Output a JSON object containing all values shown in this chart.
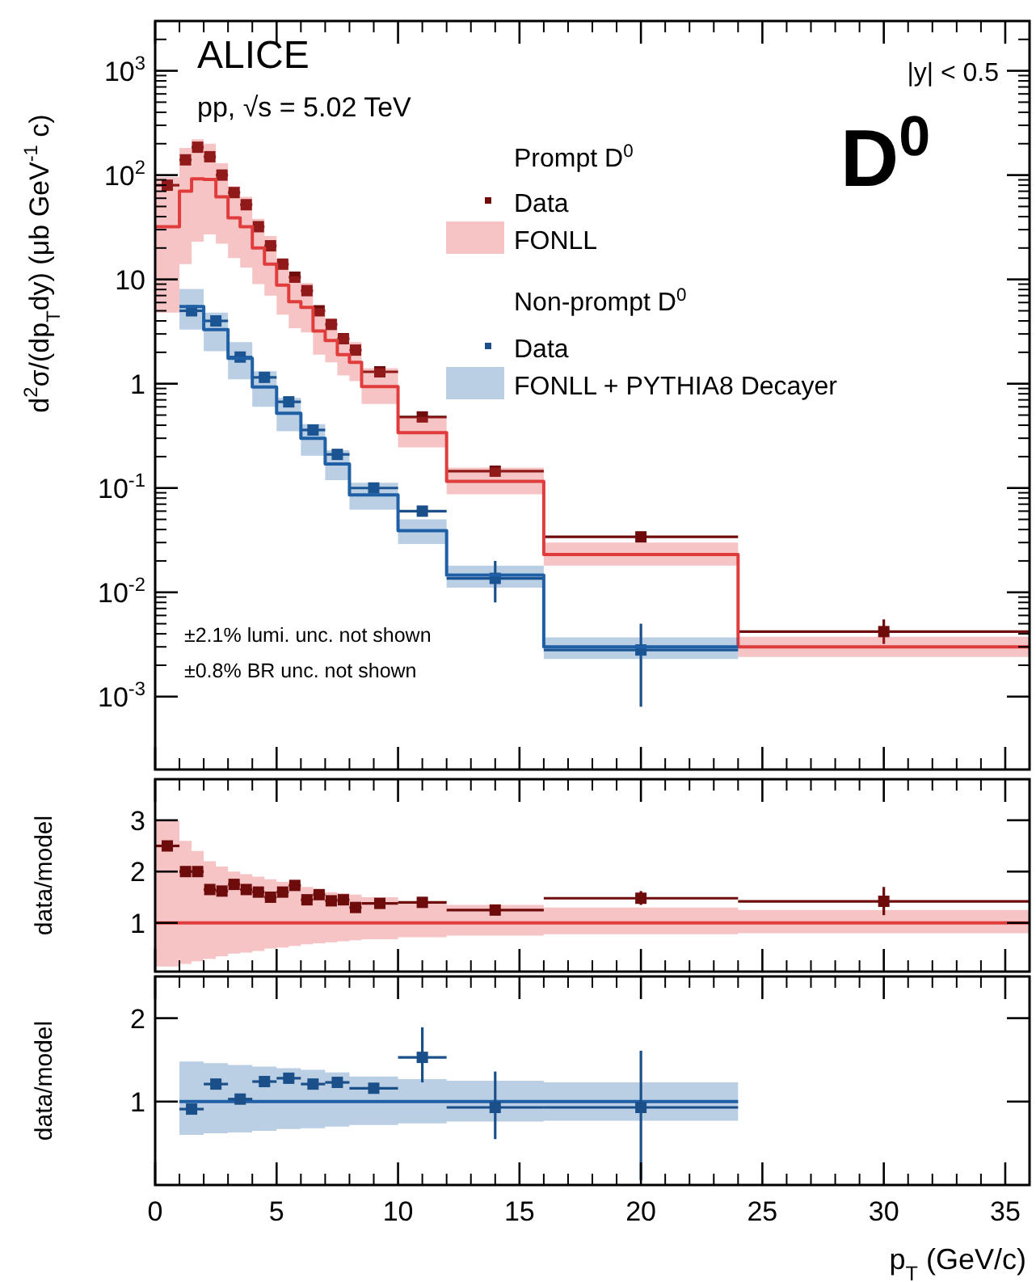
{
  "chart_data": [
    {
      "type": "scatter",
      "log": true,
      "ylabel": "d$^{2}$σ/(dp$_{T}$dy) (μb GeV$^{-1}$ c)",
      "xlim": [
        0,
        36
      ],
      "ylim": [
        0.0002,
        3000
      ],
      "xticks": [
        0,
        5,
        10,
        15,
        20,
        25,
        30,
        35
      ],
      "yticks": [
        {
          "value": 0.001,
          "label": "10$^{-3}$"
        },
        {
          "value": 0.01,
          "label": "10$^{-2}$"
        },
        {
          "value": 0.1,
          "label": "10$^{-1}$"
        },
        1,
        10,
        {
          "value": 100,
          "label": "10$^{2}$"
        },
        {
          "value": 1000,
          "label": "10$^{3}$"
        }
      ],
      "tick_labels": "y",
      "legend": "top right",
      "annotations": [
        "ALICE",
        "pp, √s = 5.02 TeV",
        "|y| < 0.5",
        "D$^{0}$",
        "Prompt D$^{0}$",
        "Non-prompt D$^{0}$",
        "±2.1% lumi. unc. not shown",
        "±0.8% BR unc. not shown"
      ],
      "series": [
        {
          "name": "Data",
          "marker": "square",
          "color": "#6e0c0c",
          "x": [
            0.5,
            1.25,
            1.75,
            2.25,
            2.75,
            3.25,
            3.75,
            4.25,
            4.75,
            5.25,
            5.75,
            6.25,
            6.75,
            7.25,
            7.75,
            8.25,
            9.25,
            11,
            14,
            20,
            30
          ],
          "xerrors": [
            0.5,
            0.25,
            0.25,
            0.25,
            0.25,
            0.25,
            0.25,
            0.25,
            0.25,
            0.25,
            0.25,
            0.25,
            0.25,
            0.25,
            0.25,
            0.25,
            0.75,
            1,
            2,
            4,
            6
          ],
          "values": [
            80,
            140,
            185,
            150,
            100,
            68,
            52,
            32,
            21,
            14,
            10.5,
            7.8,
            5.0,
            3.7,
            2.7,
            2.1,
            1.3,
            0.48,
            0.145,
            0.034,
            0.0042
          ],
          "errors": [
            null,
            null,
            null,
            null,
            null,
            null,
            null,
            null,
            null,
            null,
            null,
            null,
            null,
            null,
            null,
            null,
            null,
            null,
            null,
            null,
            [
              0.0032,
              0.0055
            ]
          ]
        },
        {
          "name": "FONLL",
          "type": "line",
          "color": "#e03c3c",
          "x": [
            0,
            1,
            1,
            1.5,
            1.5,
            2,
            2,
            2.5,
            2.5,
            3,
            3,
            3.5,
            3.5,
            4,
            4,
            4.5,
            4.5,
            5,
            5,
            5.5,
            5.5,
            6,
            6,
            6.5,
            6.5,
            7,
            7,
            7.5,
            7.5,
            8,
            8,
            8.5,
            8.5,
            10,
            10,
            12,
            12,
            16,
            16,
            24,
            24,
            36
          ],
          "values": [
            32,
            32,
            70,
            70,
            92,
            92,
            91,
            91,
            62,
            62,
            39,
            39,
            32,
            32,
            20,
            20,
            14,
            14,
            8.8,
            8.8,
            6.1,
            6.1,
            5.4,
            5.4,
            3.2,
            3.2,
            2.6,
            2.6,
            1.9,
            1.9,
            1.6,
            1.6,
            0.94,
            0.94,
            0.34,
            0.34,
            0.116,
            0.116,
            0.023,
            0.023,
            0.003,
            0.003
          ],
          "lower": [
            4.8,
            4.8,
            14,
            14,
            23,
            23,
            27,
            27,
            22,
            22,
            16,
            16,
            13,
            13,
            9,
            9,
            7,
            7,
            4.6,
            4.6,
            3.4,
            3.4,
            3.1,
            3.1,
            1.9,
            1.9,
            1.6,
            1.6,
            1.2,
            1.2,
            1.06,
            1.06,
            0.64,
            0.64,
            0.245,
            0.245,
            0.087,
            0.087,
            0.018,
            0.018,
            0.0024,
            0.0024
          ],
          "upper": [
            96,
            96,
            182,
            182,
            221,
            221,
            200,
            200,
            130,
            130,
            78,
            78,
            62,
            62,
            38,
            38,
            26,
            26,
            15.8,
            15.8,
            10.7,
            10.7,
            9.2,
            9.2,
            5.3,
            5.3,
            4.2,
            4.2,
            3.0,
            3.0,
            2.5,
            2.5,
            1.41,
            1.41,
            0.48,
            0.48,
            0.157,
            0.157,
            0.03,
            0.03,
            0.00375,
            0.00375
          ]
        },
        {
          "name": "Data",
          "marker": "square",
          "color": "#1a4f8a",
          "x": [
            1.5,
            2.5,
            3.5,
            4.5,
            5.5,
            6.5,
            7.5,
            9,
            11,
            14,
            20
          ],
          "xerrors": [
            0.5,
            0.5,
            0.5,
            0.5,
            0.5,
            0.5,
            0.5,
            1,
            1,
            2,
            4
          ],
          "values": [
            5.0,
            4.0,
            1.8,
            1.15,
            0.67,
            0.36,
            0.21,
            0.1,
            0.06,
            0.0136,
            0.0028
          ],
          "errors": [
            null,
            null,
            null,
            null,
            null,
            null,
            null,
            null,
            null,
            [
              0.008,
              0.02
            ],
            [
              0.0008,
              0.005
            ]
          ]
        },
        {
          "name": "FONLL + PYTHIA8 Decayer",
          "type": "line",
          "color": "#1f5fa5",
          "x": [
            1,
            2,
            2,
            3,
            3,
            4,
            4,
            5,
            5,
            6,
            6,
            7,
            7,
            8,
            8,
            10,
            10,
            12,
            12,
            16,
            16,
            24
          ],
          "values": [
            5.5,
            5.5,
            3.3,
            3.3,
            1.75,
            1.75,
            0.93,
            0.93,
            0.52,
            0.52,
            0.3,
            0.3,
            0.17,
            0.17,
            0.086,
            0.086,
            0.039,
            0.039,
            0.0146,
            0.0146,
            0.003,
            0.003
          ],
          "lower": [
            3.3,
            3.3,
            2.05,
            2.05,
            1.1,
            1.1,
            0.6,
            0.6,
            0.35,
            0.35,
            0.204,
            0.204,
            0.119,
            0.119,
            0.062,
            0.062,
            0.029,
            0.029,
            0.0111,
            0.0111,
            0.0023,
            0.0023
          ],
          "upper": [
            8.1,
            8.1,
            4.8,
            4.8,
            2.5,
            2.5,
            1.32,
            1.32,
            0.73,
            0.73,
            0.41,
            0.41,
            0.23,
            0.23,
            0.112,
            0.112,
            0.05,
            0.05,
            0.018,
            0.018,
            0.0037,
            0.0037
          ]
        }
      ]
    },
    {
      "type": "scatter",
      "ylabel": "data/model",
      "xlim": [
        0,
        36
      ],
      "ylim": [
        0.05,
        3.8
      ],
      "xticks": [
        0,
        5,
        10,
        15,
        20,
        25,
        30,
        35
      ],
      "yticks": [
        1,
        2,
        3
      ],
      "tick_labels": "y",
      "series": [
        {
          "type": "line",
          "color": "#e03c3c",
          "x": [
            0,
            1,
            1,
            1.5,
            1.5,
            2,
            2,
            2.5,
            2.5,
            3,
            3,
            3.5,
            3.5,
            4,
            4,
            4.5,
            4.5,
            5,
            5,
            5.5,
            5.5,
            6,
            6,
            6.5,
            6.5,
            7,
            7,
            7.5,
            7.5,
            8,
            8,
            8.5,
            8.5,
            10,
            10,
            12,
            12,
            16,
            16,
            24,
            24,
            36
          ],
          "values": [
            1,
            1,
            1,
            1,
            1,
            1,
            1,
            1,
            1,
            1,
            1,
            1,
            1,
            1,
            1,
            1,
            1,
            1,
            1,
            1,
            1,
            1,
            1,
            1,
            1,
            1,
            1,
            1,
            1,
            1,
            1,
            1,
            1,
            1,
            1,
            1,
            1,
            1,
            1,
            1,
            1,
            1
          ],
          "lower": [
            0.15,
            0.15,
            0.2,
            0.2,
            0.25,
            0.25,
            0.3,
            0.3,
            0.35,
            0.35,
            0.4,
            0.4,
            0.42,
            0.42,
            0.45,
            0.45,
            0.5,
            0.5,
            0.52,
            0.52,
            0.55,
            0.55,
            0.58,
            0.58,
            0.6,
            0.6,
            0.62,
            0.62,
            0.64,
            0.64,
            0.66,
            0.66,
            0.68,
            0.68,
            0.72,
            0.72,
            0.75,
            0.75,
            0.78,
            0.78,
            0.8,
            0.8
          ],
          "upper": [
            3.0,
            3.0,
            2.6,
            2.6,
            2.4,
            2.4,
            2.2,
            2.2,
            2.1,
            2.1,
            2.0,
            2.0,
            1.95,
            1.95,
            1.9,
            1.9,
            1.85,
            1.85,
            1.8,
            1.8,
            1.75,
            1.75,
            1.7,
            1.7,
            1.65,
            1.65,
            1.6,
            1.6,
            1.58,
            1.58,
            1.55,
            1.55,
            1.5,
            1.5,
            1.42,
            1.42,
            1.35,
            1.35,
            1.3,
            1.3,
            1.25,
            1.25
          ]
        },
        {
          "marker": "square",
          "color": "#6e0c0c",
          "x": [
            0.5,
            1.25,
            1.75,
            2.25,
            2.75,
            3.25,
            3.75,
            4.25,
            4.75,
            5.25,
            5.75,
            6.25,
            6.75,
            7.25,
            7.75,
            8.25,
            9.25,
            11,
            14,
            20,
            30
          ],
          "xerrors": [
            0.5,
            0.25,
            0.25,
            0.25,
            0.25,
            0.25,
            0.25,
            0.25,
            0.25,
            0.25,
            0.25,
            0.25,
            0.25,
            0.25,
            0.25,
            0.25,
            0.75,
            1,
            2,
            4,
            6
          ],
          "values": [
            2.5,
            2.0,
            2.0,
            1.65,
            1.62,
            1.75,
            1.65,
            1.6,
            1.5,
            1.6,
            1.73,
            1.45,
            1.55,
            1.43,
            1.45,
            1.3,
            1.38,
            1.4,
            1.25,
            1.48,
            1.42
          ],
          "errors": [
            null,
            null,
            null,
            null,
            null,
            null,
            null,
            null,
            null,
            null,
            null,
            null,
            null,
            null,
            null,
            null,
            null,
            null,
            null,
            [
              1.35,
              1.62
            ],
            [
              1.15,
              1.7
            ]
          ]
        }
      ]
    },
    {
      "type": "scatter",
      "ylabel": "data/model",
      "xlabel": "p$_{T}$ (GeV/c)",
      "xlim": [
        0,
        36
      ],
      "ylim": [
        0,
        2.5
      ],
      "xticks": [
        0,
        5,
        10,
        15,
        20,
        25,
        30,
        35
      ],
      "yticks": [
        1,
        2
      ],
      "series": [
        {
          "type": "line",
          "color": "#1f5fa5",
          "x": [
            1,
            2,
            2,
            3,
            3,
            4,
            4,
            5,
            5,
            6,
            6,
            7,
            7,
            8,
            8,
            10,
            10,
            12,
            12,
            16,
            16,
            24
          ],
          "values": [
            1,
            1,
            1,
            1,
            1,
            1,
            1,
            1,
            1,
            1,
            1,
            1,
            1,
            1,
            1,
            1,
            1,
            1,
            1,
            1,
            1,
            1
          ],
          "lower": [
            0.6,
            0.6,
            0.62,
            0.62,
            0.63,
            0.63,
            0.65,
            0.65,
            0.67,
            0.67,
            0.68,
            0.68,
            0.7,
            0.7,
            0.72,
            0.72,
            0.74,
            0.74,
            0.76,
            0.76,
            0.77,
            0.77
          ],
          "upper": [
            1.48,
            1.48,
            1.46,
            1.46,
            1.44,
            1.44,
            1.42,
            1.42,
            1.4,
            1.4,
            1.38,
            1.38,
            1.35,
            1.35,
            1.3,
            1.3,
            1.27,
            1.27,
            1.25,
            1.25,
            1.23,
            1.23
          ]
        },
        {
          "marker": "square",
          "color": "#1a4f8a",
          "x": [
            1.5,
            2.5,
            3.5,
            4.5,
            5.5,
            6.5,
            7.5,
            9,
            11,
            14,
            20
          ],
          "xerrors": [
            0.5,
            0.5,
            0.5,
            0.5,
            0.5,
            0.5,
            0.5,
            1,
            1,
            2,
            4
          ],
          "values": [
            0.91,
            1.21,
            1.03,
            1.24,
            1.28,
            1.21,
            1.23,
            1.16,
            1.53,
            0.93,
            0.93
          ],
          "errors": [
            null,
            null,
            null,
            null,
            null,
            null,
            null,
            null,
            [
              1.23,
              1.89
            ],
            [
              0.55,
              1.36
            ],
            [
              0.06,
              1.61
            ]
          ]
        }
      ]
    }
  ]
}
